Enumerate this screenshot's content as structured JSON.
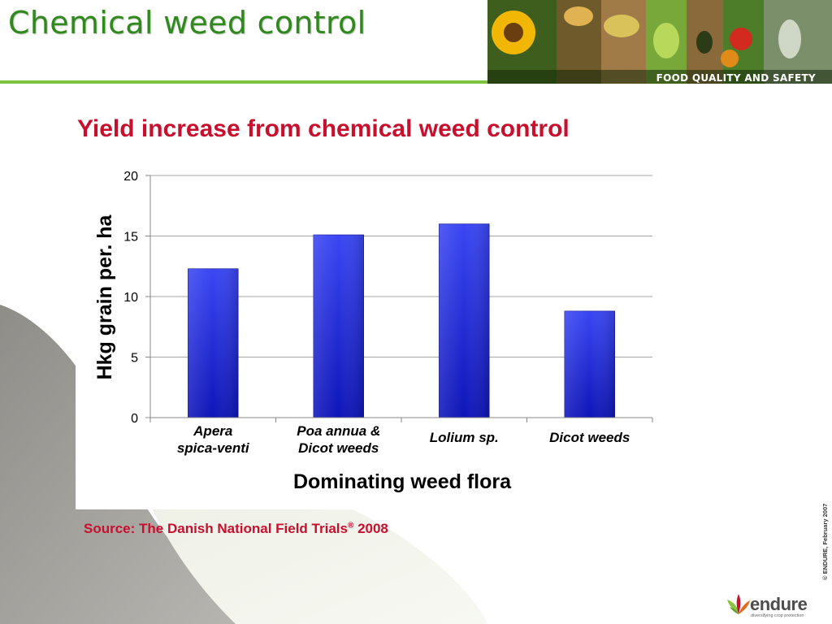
{
  "slide": {
    "title": "Chemical weed control",
    "banner_caption": "FOOD QUALITY AND SAFETY",
    "source": "Source: The Danish National Field Trials",
    "source_mark": "®",
    "source_year": " 2008",
    "copyright": "© ENDURE, February 2007",
    "logo_text": "endure",
    "logo_tagline": "diversifying crop protection"
  },
  "colors": {
    "title_green": "#2f8a1c",
    "rule_green": "#7fc242",
    "chart_title_red": "#c8102e",
    "bar_blue_top": "#3a46f2",
    "bar_blue_bottom": "#0e15b8",
    "grid": "#a6a6a6"
  },
  "chart_data": {
    "type": "bar",
    "title": "Yield increase from chemical weed control",
    "xlabel": "Dominating weed flora",
    "ylabel": "Hkg grain per. ha",
    "categories": [
      [
        "Apera",
        "spica-venti"
      ],
      [
        "Poa annua &",
        "Dicot weeds"
      ],
      [
        "Lolium sp."
      ],
      [
        "Dicot weeds"
      ]
    ],
    "values": [
      12.3,
      15.1,
      16.0,
      8.8
    ],
    "ylim": [
      0,
      20
    ],
    "yticks": [
      0,
      5,
      10,
      15,
      20
    ],
    "grid": true,
    "legend": "none"
  }
}
